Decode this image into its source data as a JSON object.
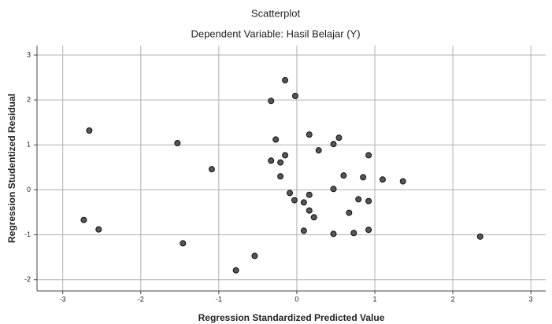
{
  "chart_data": {
    "type": "scatter",
    "title": "Scatterplot",
    "subtitle": "Dependent Variable: Hasil Belajar (Y)",
    "x_label": "Regression Standardized Predicted Value",
    "y_label": "Regression Studentized Residual",
    "x": [
      -2.66,
      -2.73,
      -2.54,
      -1.53,
      -1.46,
      -1.09,
      -0.78,
      -0.54,
      -0.15,
      -0.33,
      -0.02,
      -0.27,
      -0.33,
      -0.21,
      -0.15,
      -0.21,
      -0.09,
      -0.03,
      0.09,
      0.16,
      0.16,
      0.28,
      0.09,
      0.16,
      0.22,
      0.47,
      0.54,
      0.47,
      0.6,
      0.47,
      0.67,
      0.73,
      0.79,
      0.85,
      0.92,
      0.92,
      0.92,
      1.1,
      1.36,
      2.35
    ],
    "y": [
      1.32,
      -0.67,
      -0.88,
      1.04,
      -1.19,
      0.46,
      -1.79,
      -1.47,
      2.44,
      1.98,
      2.09,
      1.12,
      0.65,
      0.61,
      0.77,
      0.3,
      -0.07,
      -0.23,
      -0.28,
      -0.11,
      1.23,
      0.88,
      -0.91,
      -0.46,
      -0.61,
      1.02,
      1.16,
      0.02,
      0.32,
      -0.98,
      -0.51,
      -0.96,
      -0.21,
      0.28,
      0.77,
      -0.25,
      -0.89,
      0.23,
      0.19,
      -1.04
    ],
    "color": "#555555",
    "xlim": [
      -3.33,
      3.19
    ],
    "ylim": [
      -2.25,
      3.21
    ],
    "xticks": [
      -3,
      -2,
      -1,
      0,
      1,
      2,
      3
    ],
    "yticks": [
      -2,
      -1,
      0,
      1,
      2,
      3
    ],
    "grid": true
  }
}
